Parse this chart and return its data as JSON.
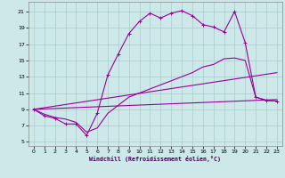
{
  "bg_color": "#cce8e8",
  "grid_color": "#aacccc",
  "line_color": "#990099",
  "xlabel": "Windchill (Refroidissement éolien,°C)",
  "x_ticks": [
    0,
    1,
    2,
    3,
    4,
    5,
    6,
    7,
    8,
    9,
    10,
    11,
    12,
    13,
    14,
    15,
    16,
    17,
    18,
    19,
    20,
    21,
    22,
    23
  ],
  "y_ticks": [
    5,
    7,
    9,
    11,
    13,
    15,
    17,
    19,
    21
  ],
  "xlim": [
    -0.5,
    23.5
  ],
  "ylim": [
    4.5,
    22.2
  ],
  "line1_x": [
    0,
    1,
    2,
    3,
    4,
    5,
    6,
    7,
    8,
    9,
    10,
    11,
    12,
    13,
    14,
    15,
    16,
    17,
    18,
    19,
    20,
    21,
    22,
    23
  ],
  "line1_y": [
    9.0,
    8.2,
    7.9,
    7.2,
    7.2,
    5.8,
    8.5,
    13.2,
    15.8,
    18.3,
    19.8,
    20.8,
    20.2,
    20.8,
    21.1,
    20.5,
    19.4,
    19.1,
    18.5,
    21.0,
    17.2,
    10.5,
    10.1,
    10.0
  ],
  "line2_x": [
    0,
    1,
    2,
    3,
    4,
    5,
    6,
    7,
    8,
    9,
    10,
    11,
    12,
    13,
    14,
    15,
    16,
    17,
    18,
    19,
    20,
    21,
    22,
    23
  ],
  "line2_y": [
    9.0,
    8.4,
    8.0,
    7.8,
    7.4,
    6.2,
    6.7,
    8.5,
    9.5,
    10.5,
    11.0,
    11.5,
    12.0,
    12.5,
    13.0,
    13.5,
    14.2,
    14.5,
    15.2,
    15.3,
    15.0,
    10.5,
    10.1,
    10.0
  ],
  "line3_x": [
    0,
    23
  ],
  "line3_y": [
    9.0,
    10.2
  ],
  "line4_x": [
    0,
    23
  ],
  "line4_y": [
    9.0,
    13.5
  ]
}
